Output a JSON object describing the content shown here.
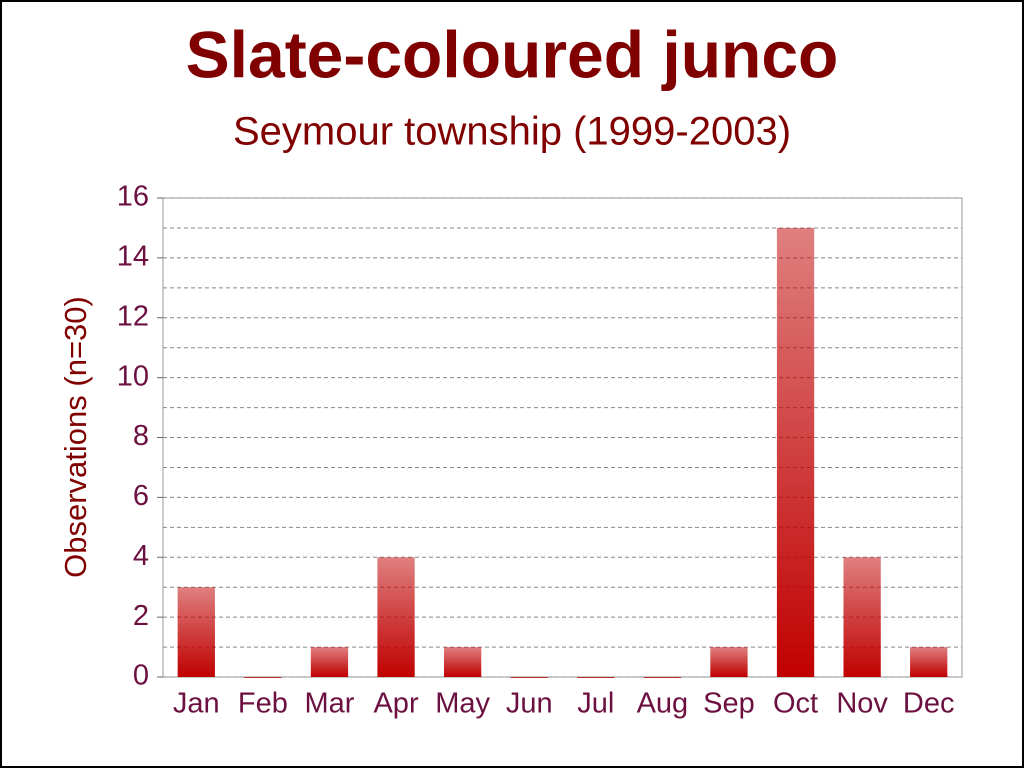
{
  "chart_data": {
    "type": "bar",
    "title": "Slate-coloured junco",
    "subtitle": "Seymour township (1999-2003)",
    "y_label": "Observations (n=30)",
    "categories": [
      "Jan",
      "Feb",
      "Mar",
      "Apr",
      "May",
      "Jun",
      "Jul",
      "Aug",
      "Sep",
      "Oct",
      "Nov",
      "Dec"
    ],
    "values": [
      3,
      0,
      1,
      4,
      1,
      0,
      0,
      0,
      1,
      15,
      4,
      1
    ],
    "color": "#c00000",
    "ylim": [
      0,
      16
    ],
    "yticks": [
      0,
      2,
      4,
      6,
      8,
      10,
      12,
      14,
      16
    ],
    "minor_yticks": [
      1,
      3,
      5,
      7,
      9,
      11,
      13,
      15
    ],
    "grid": true
  }
}
